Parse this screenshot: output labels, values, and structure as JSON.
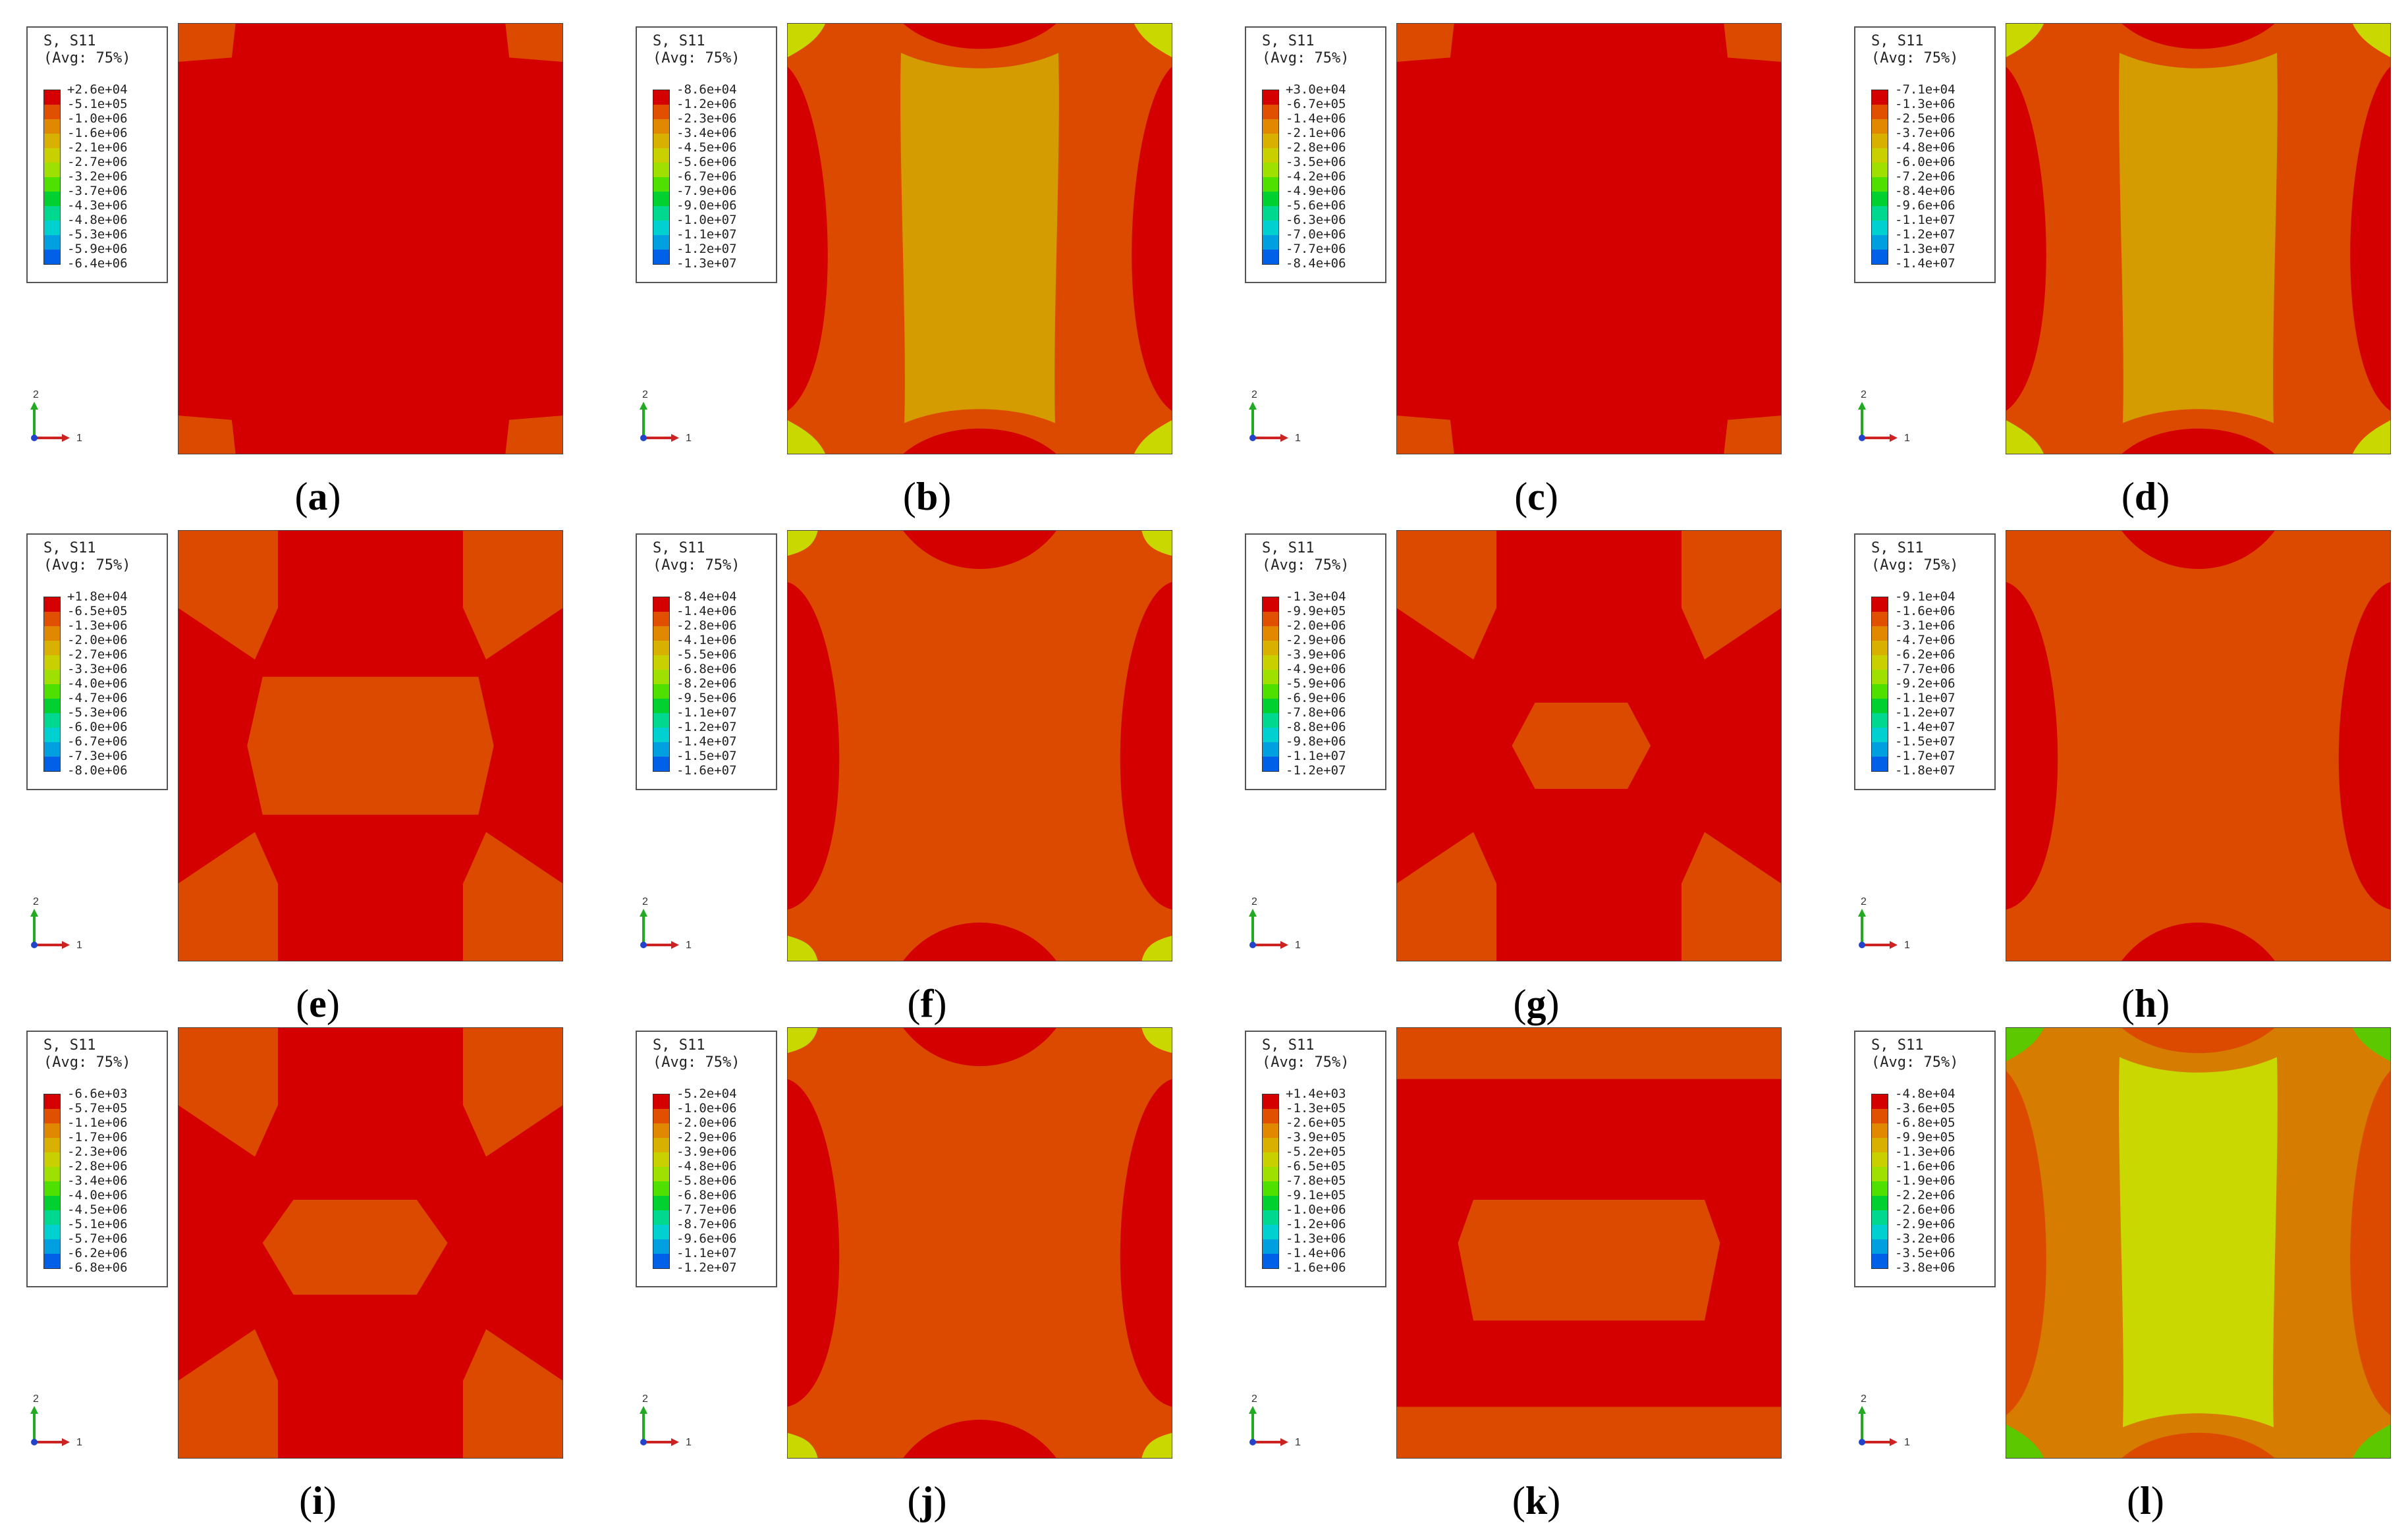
{
  "colors": {
    "red": "#d40000",
    "orange_red": "#dc4a00",
    "orange": "#d67c00",
    "gold": "#d49c00",
    "yellow_green": "#c8d800",
    "green": "#5cc800"
  },
  "legend_palette": [
    "#d40000",
    "#e05000",
    "#e08800",
    "#d8b000",
    "#c8d000",
    "#a0e000",
    "#50e000",
    "#00d030",
    "#00d890",
    "#00d0d0",
    "#00a0e0",
    "#0060e8",
    "#1010d0"
  ],
  "panels": [
    {
      "id": "a",
      "caption": "a",
      "legend_title": "S, S11",
      "legend_avg": "(Avg: 75%)",
      "legend_values": [
        "+2.6e+04",
        "-5.1e+05",
        "-1.0e+06",
        "-1.6e+06",
        "-2.1e+06",
        "-2.7e+06",
        "-3.2e+06",
        "-3.7e+06",
        "-4.3e+06",
        "-4.8e+06",
        "-5.3e+06",
        "-5.9e+06",
        "-6.4e+06"
      ]
    },
    {
      "id": "b",
      "caption": "b",
      "legend_title": "S, S11",
      "legend_avg": "(Avg: 75%)",
      "legend_values": [
        "-8.6e+04",
        "-1.2e+06",
        "-2.3e+06",
        "-3.4e+06",
        "-4.5e+06",
        "-5.6e+06",
        "-6.7e+06",
        "-7.9e+06",
        "-9.0e+06",
        "-1.0e+07",
        "-1.1e+07",
        "-1.2e+07",
        "-1.3e+07"
      ]
    },
    {
      "id": "c",
      "caption": "c",
      "legend_title": "S, S11",
      "legend_avg": "(Avg: 75%)",
      "legend_values": [
        "+3.0e+04",
        "-6.7e+05",
        "-1.4e+06",
        "-2.1e+06",
        "-2.8e+06",
        "-3.5e+06",
        "-4.2e+06",
        "-4.9e+06",
        "-5.6e+06",
        "-6.3e+06",
        "-7.0e+06",
        "-7.7e+06",
        "-8.4e+06"
      ]
    },
    {
      "id": "d",
      "caption": "d",
      "legend_title": "S, S11",
      "legend_avg": "(Avg: 75%)",
      "legend_values": [
        "-7.1e+04",
        "-1.3e+06",
        "-2.5e+06",
        "-3.7e+06",
        "-4.8e+06",
        "-6.0e+06",
        "-7.2e+06",
        "-8.4e+06",
        "-9.6e+06",
        "-1.1e+07",
        "-1.2e+07",
        "-1.3e+07",
        "-1.4e+07"
      ]
    },
    {
      "id": "e",
      "caption": "e",
      "legend_title": "S, S11",
      "legend_avg": "(Avg: 75%)",
      "legend_values": [
        "+1.8e+04",
        "-6.5e+05",
        "-1.3e+06",
        "-2.0e+06",
        "-2.7e+06",
        "-3.3e+06",
        "-4.0e+06",
        "-4.7e+06",
        "-5.3e+06",
        "-6.0e+06",
        "-6.7e+06",
        "-7.3e+06",
        "-8.0e+06"
      ]
    },
    {
      "id": "f",
      "caption": "f",
      "legend_title": "S, S11",
      "legend_avg": "(Avg: 75%)",
      "legend_values": [
        "-8.4e+04",
        "-1.4e+06",
        "-2.8e+06",
        "-4.1e+06",
        "-5.5e+06",
        "-6.8e+06",
        "-8.2e+06",
        "-9.5e+06",
        "-1.1e+07",
        "-1.2e+07",
        "-1.4e+07",
        "-1.5e+07",
        "-1.6e+07"
      ]
    },
    {
      "id": "g",
      "caption": "g",
      "legend_title": "S, S11",
      "legend_avg": "(Avg: 75%)",
      "legend_values": [
        "-1.3e+04",
        "-9.9e+05",
        "-2.0e+06",
        "-2.9e+06",
        "-3.9e+06",
        "-4.9e+06",
        "-5.9e+06",
        "-6.9e+06",
        "-7.8e+06",
        "-8.8e+06",
        "-9.8e+06",
        "-1.1e+07",
        "-1.2e+07"
      ]
    },
    {
      "id": "h",
      "caption": "h",
      "legend_title": "S, S11",
      "legend_avg": "(Avg: 75%)",
      "legend_values": [
        "-9.1e+04",
        "-1.6e+06",
        "-3.1e+06",
        "-4.7e+06",
        "-6.2e+06",
        "-7.7e+06",
        "-9.2e+06",
        "-1.1e+07",
        "-1.2e+07",
        "-1.4e+07",
        "-1.5e+07",
        "-1.7e+07",
        "-1.8e+07"
      ]
    },
    {
      "id": "i",
      "caption": "i",
      "legend_title": "S, S11",
      "legend_avg": "(Avg: 75%)",
      "legend_values": [
        "-6.6e+03",
        "-5.7e+05",
        "-1.1e+06",
        "-1.7e+06",
        "-2.3e+06",
        "-2.8e+06",
        "-3.4e+06",
        "-4.0e+06",
        "-4.5e+06",
        "-5.1e+06",
        "-5.7e+06",
        "-6.2e+06",
        "-6.8e+06"
      ]
    },
    {
      "id": "j",
      "caption": "j",
      "legend_title": "S, S11",
      "legend_avg": "(Avg: 75%)",
      "legend_values": [
        "-5.2e+04",
        "-1.0e+06",
        "-2.0e+06",
        "-2.9e+06",
        "-3.9e+06",
        "-4.8e+06",
        "-5.8e+06",
        "-6.8e+06",
        "-7.7e+06",
        "-8.7e+06",
        "-9.6e+06",
        "-1.1e+07",
        "-1.2e+07"
      ]
    },
    {
      "id": "k",
      "caption": "k",
      "legend_title": "S, S11",
      "legend_avg": "(Avg: 75%)",
      "legend_values": [
        "+1.4e+03",
        "-1.3e+05",
        "-2.6e+05",
        "-3.9e+05",
        "-5.2e+05",
        "-6.5e+05",
        "-7.8e+05",
        "-9.1e+05",
        "-1.0e+06",
        "-1.2e+06",
        "-1.3e+06",
        "-1.4e+06",
        "-1.6e+06"
      ]
    },
    {
      "id": "l",
      "caption": "l",
      "legend_title": "S, S11",
      "legend_avg": "(Avg: 75%)",
      "legend_values": [
        "-4.8e+04",
        "-3.6e+05",
        "-6.8e+05",
        "-9.9e+05",
        "-1.3e+06",
        "-1.6e+06",
        "-1.9e+06",
        "-2.2e+06",
        "-2.6e+06",
        "-2.9e+06",
        "-3.2e+06",
        "-3.5e+06",
        "-3.8e+06"
      ]
    }
  ],
  "triad": {
    "axis_vertical": "2",
    "axis_horizontal": "1"
  }
}
